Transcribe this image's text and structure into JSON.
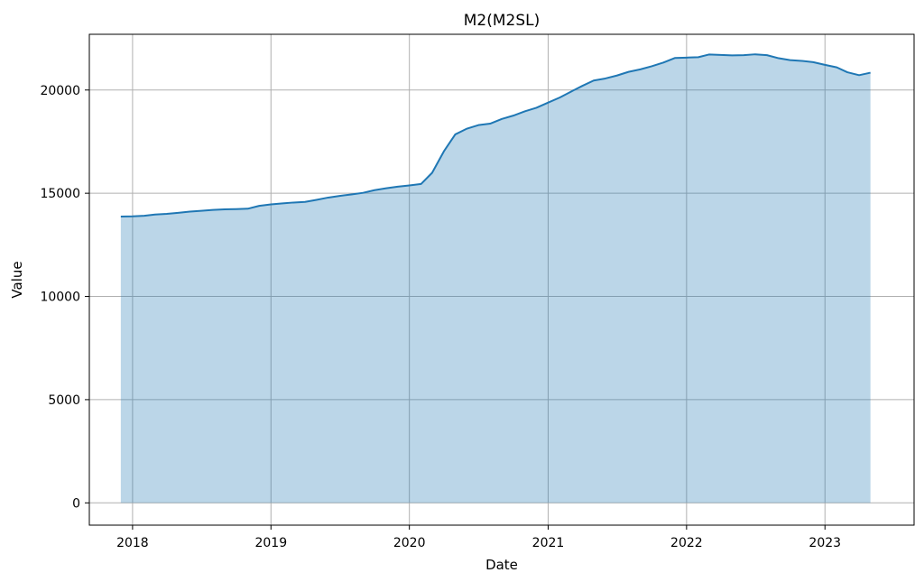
{
  "chart_data": {
    "type": "area",
    "title": "M2(M2SL)",
    "xlabel": "Date",
    "ylabel": "Value",
    "x_ticks": [
      "2018",
      "2019",
      "2020",
      "2021",
      "2022",
      "2023"
    ],
    "y_ticks": [
      0,
      5000,
      10000,
      15000,
      20000
    ],
    "xlim": [
      "2017-09-09",
      "2023-08-24"
    ],
    "ylim": [
      -1080,
      22700
    ],
    "grid": true,
    "colors": {
      "line": "#1f77b4",
      "fill": "#1f77b4",
      "fill_opacity": 0.3
    },
    "series": [
      {
        "x": [
          "2017-12-01",
          "2018-01-01",
          "2018-02-01",
          "2018-03-01",
          "2018-04-01",
          "2018-05-01",
          "2018-06-01",
          "2018-07-01",
          "2018-08-01",
          "2018-09-01",
          "2018-10-01",
          "2018-11-01",
          "2018-12-01",
          "2019-01-01",
          "2019-02-01",
          "2019-03-01",
          "2019-04-01",
          "2019-05-01",
          "2019-06-01",
          "2019-07-01",
          "2019-08-01",
          "2019-09-01",
          "2019-10-01",
          "2019-11-01",
          "2019-12-01",
          "2020-01-01",
          "2020-02-01",
          "2020-03-01",
          "2020-04-01",
          "2020-05-01",
          "2020-06-01",
          "2020-07-01",
          "2020-08-01",
          "2020-09-01",
          "2020-10-01",
          "2020-11-01",
          "2020-12-01",
          "2021-01-01",
          "2021-02-01",
          "2021-03-01",
          "2021-04-01",
          "2021-05-01",
          "2021-06-01",
          "2021-07-01",
          "2021-08-01",
          "2021-09-01",
          "2021-10-01",
          "2021-11-01",
          "2021-12-01",
          "2022-01-01",
          "2022-02-01",
          "2022-03-01",
          "2022-04-01",
          "2022-05-01",
          "2022-06-01",
          "2022-07-01",
          "2022-08-01",
          "2022-09-01",
          "2022-10-01",
          "2022-11-01",
          "2022-12-01",
          "2023-01-01",
          "2023-02-01",
          "2023-03-01",
          "2023-04-01",
          "2023-05-01"
        ],
        "values": [
          13870,
          13880,
          13910,
          13970,
          14000,
          14050,
          14110,
          14150,
          14190,
          14220,
          14230,
          14250,
          14390,
          14460,
          14510,
          14550,
          14580,
          14680,
          14790,
          14870,
          14940,
          15020,
          15150,
          15240,
          15320,
          15380,
          15450,
          15990,
          17030,
          17850,
          18130,
          18300,
          18370,
          18600,
          18760,
          18970,
          19140,
          19390,
          19640,
          19910,
          20200,
          20460,
          20560,
          20700,
          20880,
          21000,
          21150,
          21330,
          21550,
          21570,
          21590,
          21720,
          21700,
          21680,
          21690,
          21730,
          21690,
          21540,
          21450,
          21410,
          21350,
          21220,
          21100,
          20860,
          20720,
          20840
        ]
      }
    ]
  }
}
